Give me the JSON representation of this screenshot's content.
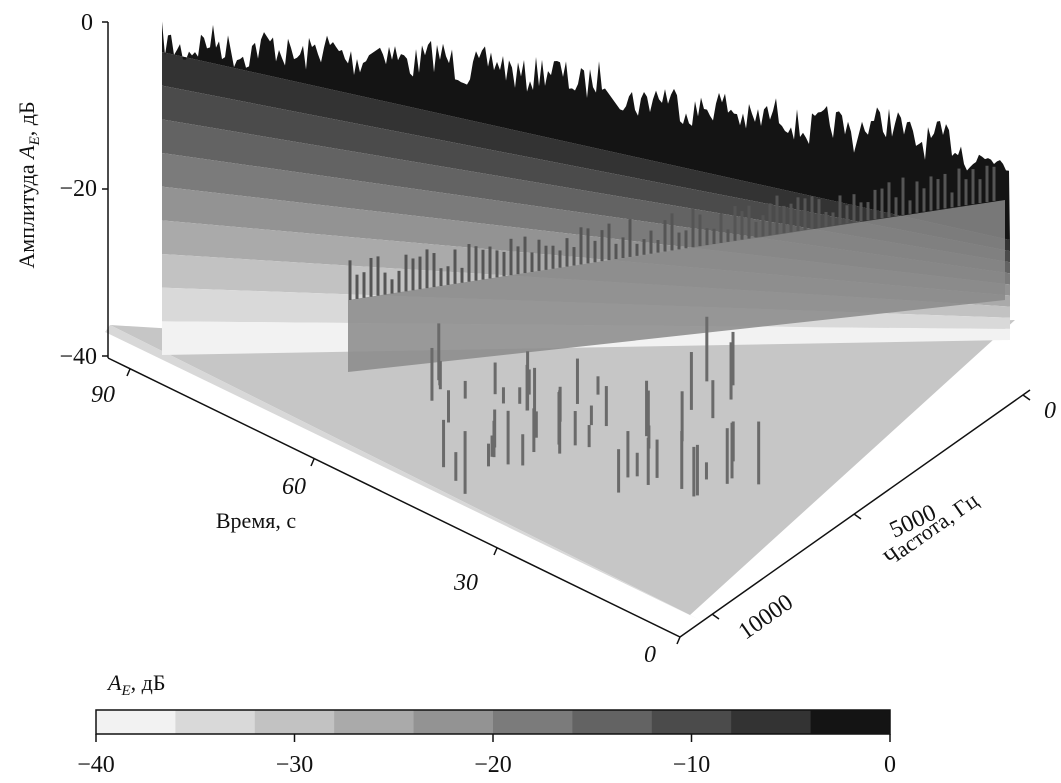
{
  "chart_data": {
    "type": "surface3d",
    "title": "",
    "zlabel_prefix": "Амплитуда",
    "zlabel_var": "A",
    "zlabel_sub": "E",
    "zlabel_unit": ", дБ",
    "zlim": [
      -40,
      0
    ],
    "z_ticks": [
      "0",
      "−20",
      "−40"
    ],
    "time_label": "Время, с",
    "time_ticks": [
      "90",
      "60",
      "30",
      "0"
    ],
    "freq_label": "Частота, Гц",
    "freq_ticks": [
      "0",
      "5000",
      "10000"
    ],
    "colorbar": {
      "label_var": "A",
      "label_sub": "E",
      "label_unit": ", дБ",
      "range": [
        -40,
        0
      ],
      "ticks": [
        "−40",
        "−30",
        "−20",
        "−10",
        "0"
      ],
      "levels": 10,
      "colors": [
        "#f2f2f2",
        "#d9d9d9",
        "#c2c2c2",
        "#aaaaaa",
        "#939393",
        "#7b7b7b",
        "#636363",
        "#4b4b4b",
        "#333333",
        "#141414"
      ]
    }
  }
}
